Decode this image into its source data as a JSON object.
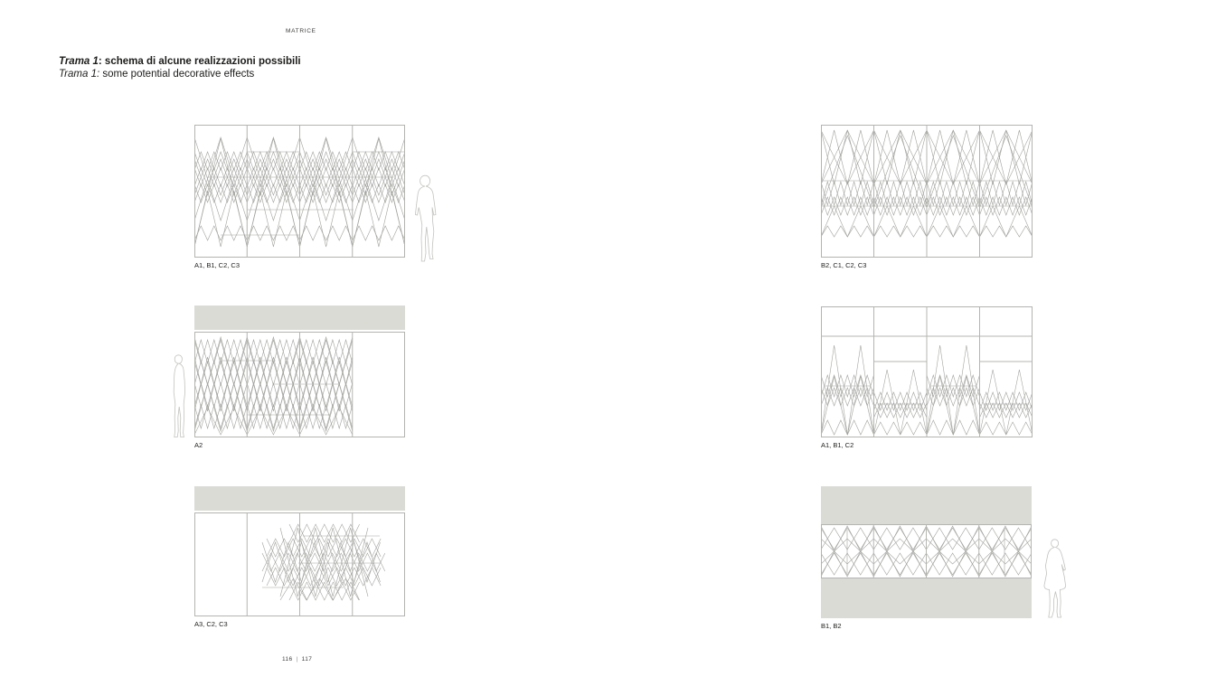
{
  "header": {
    "section_label": "MATRICE"
  },
  "title": {
    "line_it": {
      "lead": "Trama 1",
      "rest": ": schema di alcune realizzazioni possibili"
    },
    "line_en": {
      "lead": "Trama 1:",
      "rest": " some potential decorative effects"
    }
  },
  "panels": [
    {
      "id": "a1-b1-c2-c3",
      "label": "A1, B1, C2, C3",
      "pattern": "full-lattice"
    },
    {
      "id": "b2-c1-c2-c3",
      "label": "B2, C1, C2, C3",
      "pattern": "top-heavy-lattice"
    },
    {
      "id": "a2",
      "label": "A2",
      "pattern": "left-three-columns"
    },
    {
      "id": "a1-b1-c2",
      "label": "A1, B1, C2",
      "pattern": "lower-triangles"
    },
    {
      "id": "a3-c2-c3",
      "label": "A3, C2, C3",
      "pattern": "center-cluster"
    },
    {
      "id": "b1-b2",
      "label": "B1, B2",
      "pattern": "horizontal-band-diamonds"
    }
  ],
  "figures": [
    {
      "name": "human-scale-figure-front"
    },
    {
      "name": "human-scale-figure-profile"
    },
    {
      "name": "human-scale-figure-coat"
    }
  ],
  "footer": {
    "page_left": "116",
    "separator": "|",
    "page_right": "117"
  },
  "colors": {
    "text": "#1c1c1a",
    "gray_band": "#dbdbd6",
    "panel_line": "#b4b4b0",
    "pattern_line": "#a2a29e",
    "figure_line": "#c2c2be"
  }
}
